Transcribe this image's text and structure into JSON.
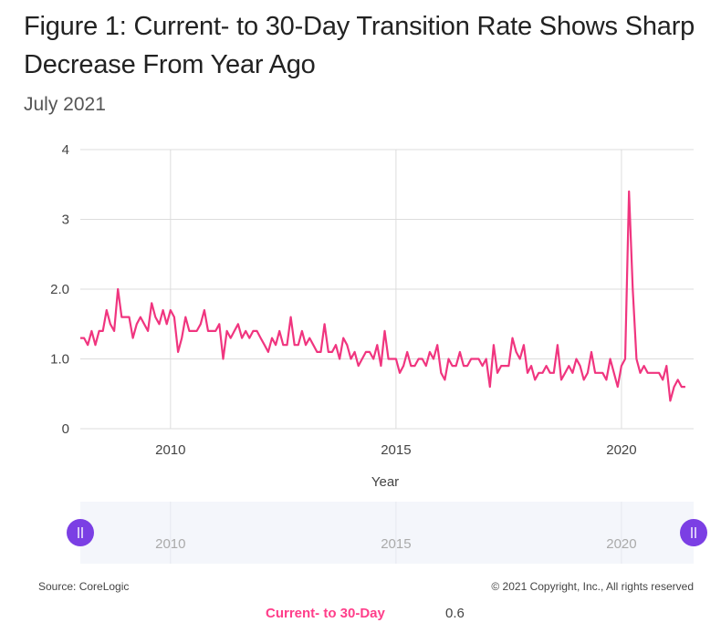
{
  "title": "Figure 1: Current- to 30-Day Transition Rate Shows Sharp Decrease From Year Ago",
  "subtitle": "July 2021",
  "source": "Source: CoreLogic",
  "copyright": "© 2021 Copyright, Inc., All rights reserved",
  "readout": {
    "series": "Current- to 30-Day",
    "value": "0.6"
  },
  "colors": {
    "series": "#f0357f",
    "handle": "#7b3fe4",
    "grid": "#dcdcdc",
    "navigator_bg": "#f4f6fb"
  },
  "navigator": {
    "labels": [
      "2010",
      "2015",
      "2020"
    ]
  },
  "chart_data": {
    "type": "line",
    "xlabel": "Year",
    "ylabel": "",
    "xlim": [
      2008.0,
      2021.6
    ],
    "ylim": [
      0,
      4
    ],
    "x_ticks": [
      2010,
      2015,
      2020
    ],
    "x_tick_labels": [
      "2010",
      "2015",
      "2020"
    ],
    "y_ticks": [
      0,
      1,
      2,
      3,
      4
    ],
    "y_tick_labels": [
      "0",
      "1.0",
      "2.0",
      "3",
      "4"
    ],
    "grid": true,
    "series": [
      {
        "name": "Current- to 30-Day",
        "x_start": 2008.0,
        "x_step": 0.08333,
        "values": [
          1.3,
          1.3,
          1.2,
          1.4,
          1.2,
          1.4,
          1.4,
          1.7,
          1.5,
          1.4,
          2.0,
          1.6,
          1.6,
          1.6,
          1.3,
          1.5,
          1.6,
          1.5,
          1.4,
          1.8,
          1.6,
          1.5,
          1.7,
          1.5,
          1.7,
          1.6,
          1.1,
          1.3,
          1.6,
          1.4,
          1.4,
          1.4,
          1.5,
          1.7,
          1.4,
          1.4,
          1.4,
          1.5,
          1.0,
          1.4,
          1.3,
          1.4,
          1.5,
          1.3,
          1.4,
          1.3,
          1.4,
          1.4,
          1.3,
          1.2,
          1.1,
          1.3,
          1.2,
          1.4,
          1.2,
          1.2,
          1.6,
          1.2,
          1.2,
          1.4,
          1.2,
          1.3,
          1.2,
          1.1,
          1.1,
          1.5,
          1.1,
          1.1,
          1.2,
          1.0,
          1.3,
          1.2,
          1.0,
          1.1,
          0.9,
          1.0,
          1.1,
          1.1,
          1.0,
          1.2,
          0.9,
          1.4,
          1.0,
          1.0,
          1.0,
          0.8,
          0.9,
          1.1,
          0.9,
          0.9,
          1.0,
          1.0,
          0.9,
          1.1,
          1.0,
          1.2,
          0.8,
          0.7,
          1.0,
          0.9,
          0.9,
          1.1,
          0.9,
          0.9,
          1.0,
          1.0,
          1.0,
          0.9,
          1.0,
          0.6,
          1.2,
          0.8,
          0.9,
          0.9,
          0.9,
          1.3,
          1.1,
          1.0,
          1.2,
          0.8,
          0.9,
          0.7,
          0.8,
          0.8,
          0.9,
          0.8,
          0.8,
          1.2,
          0.7,
          0.8,
          0.9,
          0.8,
          1.0,
          0.9,
          0.7,
          0.8,
          1.1,
          0.8,
          0.8,
          0.8,
          0.7,
          1.0,
          0.8,
          0.6,
          0.9,
          1.0,
          3.4,
          2.0,
          1.0,
          0.8,
          0.9,
          0.8,
          0.8,
          0.8,
          0.8,
          0.7,
          0.9,
          0.4,
          0.6,
          0.7,
          0.6,
          0.6
        ]
      }
    ]
  }
}
